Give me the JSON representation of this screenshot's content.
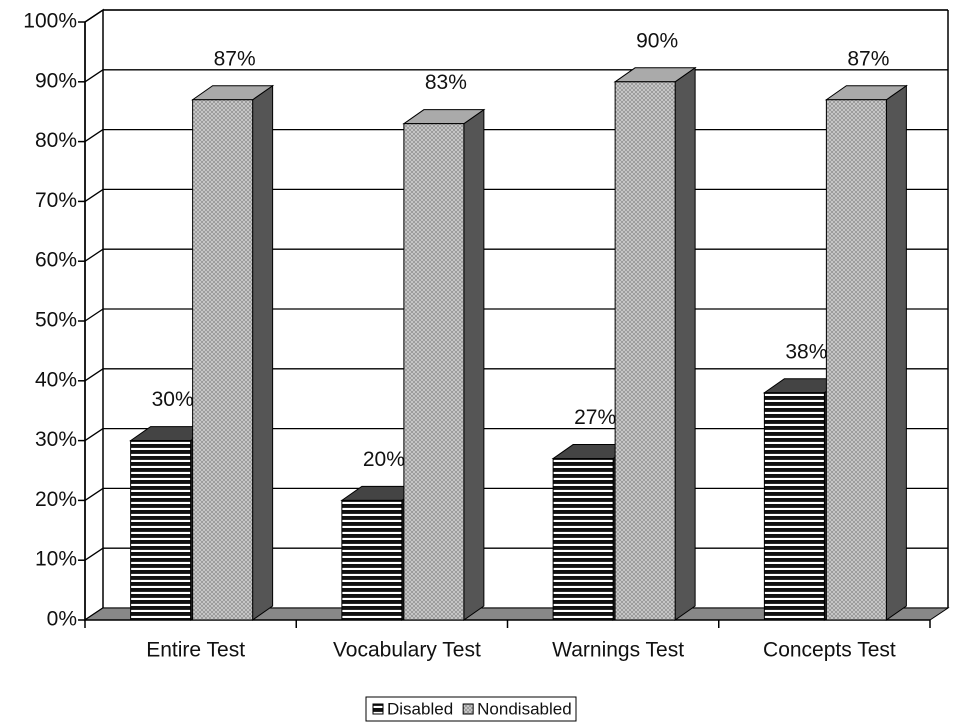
{
  "chart_data": {
    "type": "bar3d",
    "categories": [
      "Entire Test",
      "Vocabulary Test",
      "Warnings Test",
      "Concepts Test"
    ],
    "series": [
      {
        "name": "Disabled",
        "color": "#111111",
        "values": [
          30,
          20,
          27,
          38
        ],
        "value_labels": [
          "30%",
          "20%",
          "27%",
          "38%"
        ]
      },
      {
        "name": "Nondisabled",
        "color": "#9a9a9a",
        "values": [
          87,
          83,
          90,
          87
        ],
        "value_labels": [
          "87%",
          "83%",
          "90%",
          "87%"
        ]
      }
    ],
    "ylim": [
      0,
      100
    ],
    "yticks": [
      {
        "value": 0,
        "label": "0%"
      },
      {
        "value": 10,
        "label": "10%"
      },
      {
        "value": 20,
        "label": "20%"
      },
      {
        "value": 30,
        "label": "30%"
      },
      {
        "value": 40,
        "label": "40%"
      },
      {
        "value": 50,
        "label": "50%"
      },
      {
        "value": 60,
        "label": "60%"
      },
      {
        "value": 70,
        "label": "70%"
      },
      {
        "value": 80,
        "label": "80%"
      },
      {
        "value": 90,
        "label": "90%"
      },
      {
        "value": 100,
        "label": "100%"
      }
    ],
    "grid": true,
    "legend": "bottom"
  }
}
